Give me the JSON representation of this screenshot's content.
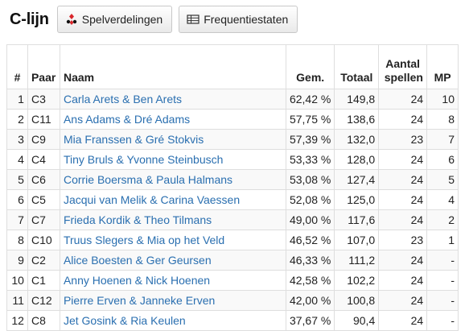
{
  "header": {
    "title": "C-lijn",
    "buttons": [
      {
        "label": "Spelverdelingen",
        "icon": "cards-icon"
      },
      {
        "label": "Frequentiestaten",
        "icon": "table-icon"
      }
    ]
  },
  "table": {
    "columns": [
      "#",
      "Paar",
      "Naam",
      "Gem.",
      "Totaal",
      "Aantal spellen",
      "MP"
    ],
    "rows": [
      {
        "rank": "1",
        "pair": "C3",
        "name": "Carla Arets & Ben Arets",
        "avg": "62,42 %",
        "total": "149,8",
        "boards": "24",
        "mp": "10"
      },
      {
        "rank": "2",
        "pair": "C11",
        "name": "Ans Adams & Dré Adams",
        "avg": "57,75 %",
        "total": "138,6",
        "boards": "24",
        "mp": "8"
      },
      {
        "rank": "3",
        "pair": "C9",
        "name": "Mia Franssen & Gré Stokvis",
        "avg": "57,39 %",
        "total": "132,0",
        "boards": "23",
        "mp": "7"
      },
      {
        "rank": "4",
        "pair": "C4",
        "name": "Tiny Bruls & Yvonne Steinbusch",
        "avg": "53,33 %",
        "total": "128,0",
        "boards": "24",
        "mp": "6"
      },
      {
        "rank": "5",
        "pair": "C6",
        "name": "Corrie Boersma & Paula Halmans",
        "avg": "53,08 %",
        "total": "127,4",
        "boards": "24",
        "mp": "5"
      },
      {
        "rank": "6",
        "pair": "C5",
        "name": "Jacqui van Melik & Carina Vaessen",
        "avg": "52,08 %",
        "total": "125,0",
        "boards": "24",
        "mp": "4"
      },
      {
        "rank": "7",
        "pair": "C7",
        "name": "Frieda Kordik & Theo Tilmans",
        "avg": "49,00 %",
        "total": "117,6",
        "boards": "24",
        "mp": "2"
      },
      {
        "rank": "8",
        "pair": "C10",
        "name": "Truus Slegers & Mia op het Veld",
        "avg": "46,52 %",
        "total": "107,0",
        "boards": "23",
        "mp": "1"
      },
      {
        "rank": "9",
        "pair": "C2",
        "name": "Alice Boesten & Ger Geursen",
        "avg": "46,33 %",
        "total": "111,2",
        "boards": "24",
        "mp": "-"
      },
      {
        "rank": "10",
        "pair": "C1",
        "name": "Anny Hoenen & Nick Hoenen",
        "avg": "42,58 %",
        "total": "102,2",
        "boards": "24",
        "mp": "-"
      },
      {
        "rank": "11",
        "pair": "C12",
        "name": "Pierre Erven & Janneke Erven",
        "avg": "42,00 %",
        "total": "100,8",
        "boards": "24",
        "mp": "-"
      },
      {
        "rank": "12",
        "pair": "C8",
        "name": "Jet Gosink & Ria Keulen",
        "avg": "37,67 %",
        "total": "90,4",
        "boards": "24",
        "mp": "-"
      }
    ]
  },
  "colors": {
    "link": "#2a6fb0",
    "suit_red": "#d9262b",
    "suit_black": "#111111"
  }
}
